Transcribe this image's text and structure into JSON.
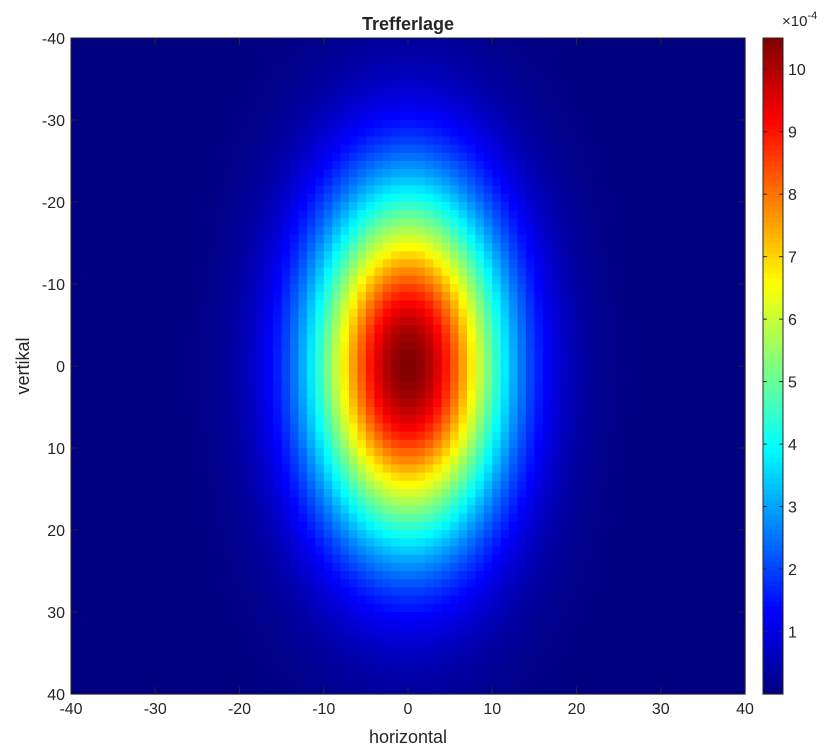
{
  "chart_data": {
    "type": "heatmap",
    "title": "Trefferlage",
    "xlabel": "horizontal",
    "ylabel": "vertikal",
    "xlim": [
      -40,
      40
    ],
    "ylim": [
      -40,
      40
    ],
    "y_direction": "reversed",
    "x_ticks": [
      "-40",
      "-30",
      "-20",
      "-10",
      "0",
      "10",
      "20",
      "30",
      "40"
    ],
    "y_ticks": [
      "-40",
      "-30",
      "-20",
      "-10",
      "0",
      "10",
      "20",
      "30",
      "40"
    ],
    "grid": false,
    "colormap": "jet",
    "distribution": {
      "shape": "2D Gaussian",
      "center": [
        0,
        0
      ],
      "sigma_x": 8,
      "sigma_y": 15,
      "peak_value": 0.00105,
      "grid_step": 1
    },
    "colorbar": {
      "min": 0,
      "max": 10.5,
      "multiplier": "×10",
      "exponent": "-4",
      "ticks": [
        "1",
        "2",
        "3",
        "4",
        "5",
        "6",
        "7",
        "8",
        "9",
        "10"
      ],
      "location": "right"
    }
  }
}
